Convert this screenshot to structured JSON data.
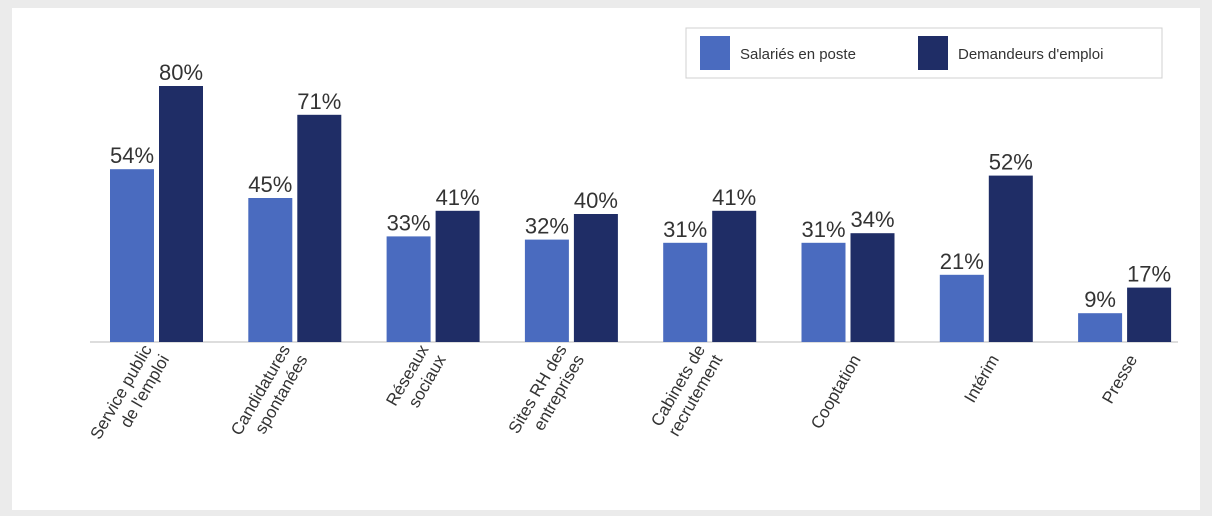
{
  "chart_data": {
    "type": "bar",
    "categories": [
      [
        "Service public",
        "de l'emploi"
      ],
      [
        "Candidatures",
        "spontanées"
      ],
      [
        "Réseaux",
        "sociaux"
      ],
      [
        "Sites RH des",
        "entreprises"
      ],
      [
        "Cabinets de",
        "recrutement"
      ],
      [
        "Cooptation"
      ],
      [
        "Intérim"
      ],
      [
        "Presse"
      ]
    ],
    "series": [
      {
        "name": "Salariés en poste",
        "color": "#4a6bbf",
        "values": [
          54,
          45,
          33,
          32,
          31,
          31,
          21,
          9
        ],
        "value_labels": [
          "54%",
          "45%",
          "33%",
          "32%",
          "31%",
          "31%",
          "21%",
          "9%"
        ]
      },
      {
        "name": "Demandeurs d'emploi",
        "color": "#1f2d66",
        "values": [
          80,
          71,
          41,
          40,
          41,
          34,
          52,
          17
        ],
        "value_labels": [
          "80%",
          "71%",
          "41%",
          "40%",
          "41%",
          "34%",
          "52%",
          "17%"
        ]
      }
    ],
    "ylim": [
      0,
      100
    ],
    "legend": "top-right"
  }
}
